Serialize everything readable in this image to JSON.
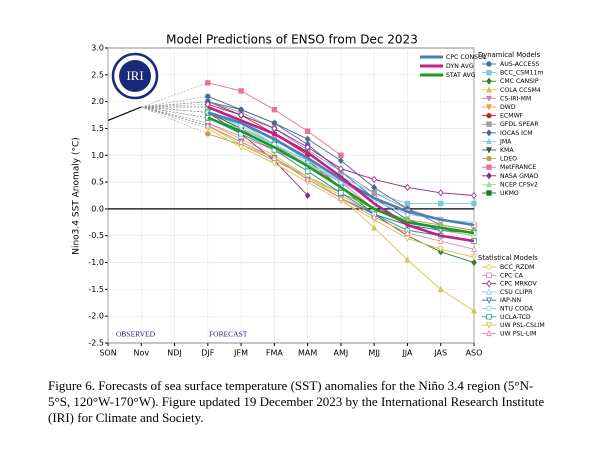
{
  "chart_data": {
    "type": "line",
    "title": "Model Predictions of ENSO from Dec 2023",
    "y_label": "Nino3.4 SST Anomaly (°C)",
    "logo_text": "IRI",
    "categories": [
      "SON",
      "Nov",
      "NDJ",
      "DJF",
      "JFM",
      "FMA",
      "MAM",
      "AMJ",
      "MJJ",
      "JJA",
      "JAS",
      "ASO"
    ],
    "ylim": [
      -2.5,
      3
    ],
    "yticks": [
      {
        "value": 3,
        "label": "3.0"
      },
      2.5,
      {
        "value": 2,
        "label": "2.0"
      },
      1.5,
      {
        "value": 1,
        "label": "1.0"
      },
      0.5,
      {
        "value": 0,
        "label": "0.0"
      },
      -0.5,
      {
        "value": -1,
        "label": "-1.0"
      },
      -1.5,
      {
        "value": -2,
        "label": "-2.0"
      },
      -2.5
    ],
    "grid": true,
    "observed": {
      "label": "OBSERVED",
      "color": "#000000",
      "values": [
        1.65,
        1.9,
        null,
        null,
        null,
        null,
        null,
        null,
        null,
        null,
        null,
        null
      ]
    },
    "forecast_label": "FORECAST",
    "series": [
      {
        "name": "CPC CONSOL",
        "color": "#4682b4",
        "values": [
          null,
          null,
          null,
          1.8,
          1.6,
          1.3,
          0.95,
          0.55,
          0.2,
          -0.05,
          -0.2,
          -0.3
        ]
      },
      {
        "name": "DYN AVG",
        "color": "#c0208a",
        "values": [
          null,
          null,
          null,
          1.9,
          1.65,
          1.4,
          1.05,
          0.6,
          0.1,
          -0.3,
          -0.5,
          -0.6
        ]
      },
      {
        "name": "STAT AVG",
        "color": "#1a9a2a",
        "values": [
          null,
          null,
          null,
          1.7,
          1.45,
          1.15,
          0.8,
          0.4,
          0.0,
          -0.25,
          -0.35,
          -0.45
        ]
      }
    ],
    "dynamical_models": {
      "title": "Dynamical Models",
      "marker_fill": true,
      "series": [
        {
          "name": "AUS-ACCESS",
          "color": "#3a6fb0",
          "marker": "circle",
          "values": [
            null,
            null,
            null,
            2.1,
            1.85,
            1.6,
            1.2,
            0.7,
            0.2,
            -0.2,
            -0.4,
            -0.5
          ]
        },
        {
          "name": "BCC_CSM11m",
          "color": "#7fc6e0",
          "marker": "square",
          "values": [
            null,
            null,
            null,
            1.7,
            1.5,
            1.2,
            0.9,
            0.6,
            0.3,
            0.1,
            0.1,
            0.1
          ]
        },
        {
          "name": "CMC CANSIP",
          "color": "#2e7d32",
          "marker": "diamond",
          "values": [
            null,
            null,
            null,
            1.9,
            1.6,
            1.3,
            0.9,
            0.4,
            -0.1,
            -0.5,
            -0.8,
            -1.0
          ]
        },
        {
          "name": "COLA CCSM4",
          "color": "#d4c64a",
          "marker": "triangle",
          "values": [
            null,
            null,
            null,
            1.6,
            1.3,
            1.0,
            0.6,
            0.2,
            -0.35,
            -0.95,
            -1.5,
            -1.9
          ]
        },
        {
          "name": "CS-IRI-MM",
          "color": "#e07aa8",
          "marker": "triangle-down",
          "values": [
            null,
            null,
            null,
            1.9,
            1.6,
            1.3,
            0.9,
            0.5,
            0.0,
            -0.3,
            -0.5,
            -0.6
          ]
        },
        {
          "name": "DWD",
          "color": "#e8a040",
          "marker": "triangle-down",
          "values": [
            null,
            null,
            null,
            1.8,
            1.5,
            1.1,
            0.7,
            0.3,
            -0.1,
            -0.4,
            -0.5,
            -0.6
          ]
        },
        {
          "name": "ECMWF",
          "color": "#c62828",
          "marker": "circle",
          "values": [
            null,
            null,
            null,
            2.0,
            1.75,
            1.4,
            1.0,
            null,
            null,
            null,
            null,
            null
          ]
        },
        {
          "name": "GFDL SPEAR",
          "color": "#9e9e9e",
          "marker": "square",
          "values": [
            null,
            null,
            null,
            2.0,
            1.8,
            1.5,
            1.1,
            0.7,
            0.3,
            0.0,
            -0.2,
            -0.3
          ]
        },
        {
          "name": "IOCAS ICM",
          "color": "#4a6a8a",
          "marker": "diamond",
          "values": [
            null,
            null,
            null,
            2.0,
            1.85,
            1.6,
            1.3,
            0.9,
            0.4,
            0.0,
            -0.3,
            -0.4
          ]
        },
        {
          "name": "JMA",
          "color": "#8ecae6",
          "marker": "triangle",
          "values": [
            null,
            null,
            null,
            1.9,
            1.65,
            1.3,
            0.9,
            0.5,
            null,
            null,
            null,
            null
          ]
        },
        {
          "name": "KMA",
          "color": "#2f5d3a",
          "marker": "triangle-down",
          "values": [
            null,
            null,
            null,
            1.8,
            1.5,
            1.2,
            0.8,
            0.4,
            null,
            null,
            null,
            null
          ]
        },
        {
          "name": "LDEO",
          "color": "#b5a642",
          "marker": "circle",
          "values": [
            null,
            null,
            null,
            1.4,
            1.2,
            0.9,
            0.6,
            0.3,
            0.0,
            -0.2,
            -0.3,
            -0.4
          ]
        },
        {
          "name": "MetFRANCE",
          "color": "#e57399",
          "marker": "square",
          "values": [
            null,
            null,
            null,
            2.35,
            2.2,
            1.85,
            1.45,
            1.0,
            null,
            null,
            null,
            null
          ]
        },
        {
          "name": "NASA GMAO",
          "color": "#8e2a8e",
          "marker": "diamond",
          "values": [
            null,
            null,
            null,
            1.8,
            1.4,
            0.9,
            0.25,
            null,
            null,
            null,
            null,
            null
          ]
        },
        {
          "name": "NCEP CFSv2",
          "color": "#a5d6a7",
          "marker": "triangle",
          "values": [
            null,
            null,
            null,
            1.9,
            1.6,
            1.2,
            0.85,
            0.4,
            null,
            null,
            null,
            null
          ]
        },
        {
          "name": "UKMO",
          "color": "#1b7a2b",
          "marker": "square",
          "values": [
            null,
            null,
            null,
            1.8,
            1.5,
            1.2,
            0.8,
            0.4,
            null,
            null,
            null,
            null
          ]
        }
      ]
    },
    "statistical_models": {
      "title": "Statistical Models",
      "marker_fill": false,
      "series": [
        {
          "name": "BCC_RZDM",
          "color": "#d4c64a",
          "marker": "circle",
          "values": [
            null,
            null,
            null,
            1.55,
            1.2,
            0.95,
            0.6,
            0.25,
            -0.1,
            -0.3,
            -0.4,
            -0.5
          ]
        },
        {
          "name": "CPC CA",
          "color": "#e07aa8",
          "marker": "square",
          "values": [
            null,
            null,
            null,
            1.6,
            1.35,
            1.1,
            0.8,
            0.5,
            0.2,
            -0.05,
            -0.2,
            -0.3
          ]
        },
        {
          "name": "CPC MRKOV",
          "color": "#8e2a8e",
          "marker": "diamond",
          "values": [
            null,
            null,
            null,
            1.95,
            1.75,
            1.5,
            1.15,
            0.75,
            0.55,
            0.4,
            0.3,
            0.25
          ]
        },
        {
          "name": "CSU CLIPR",
          "color": "#9ecae1",
          "marker": "triangle",
          "values": [
            null,
            null,
            null,
            1.7,
            1.5,
            1.2,
            0.85,
            0.5,
            0.15,
            -0.1,
            -0.2,
            -0.25
          ]
        },
        {
          "name": "IAP-NN",
          "color": "#3a6fb0",
          "marker": "triangle-down",
          "values": [
            null,
            null,
            null,
            1.55,
            1.25,
            0.95,
            0.55,
            0.2,
            -0.1,
            -0.3,
            -0.4,
            -0.45
          ]
        },
        {
          "name": "NTU CODA",
          "color": "#6fd0e0",
          "marker": "circle",
          "values": [
            null,
            null,
            null,
            1.8,
            1.55,
            1.2,
            0.8,
            0.4,
            0.0,
            -0.25,
            -0.35,
            -0.45
          ]
        },
        {
          "name": "UCLA-TCD",
          "color": "#2a9d8f",
          "marker": "square",
          "values": [
            null,
            null,
            null,
            1.7,
            1.4,
            1.1,
            0.7,
            0.3,
            -0.1,
            -0.4,
            -0.5,
            -0.6
          ]
        },
        {
          "name": "UW PSL-CSLIM",
          "color": "#d8c040",
          "marker": "triangle-down",
          "values": [
            null,
            null,
            null,
            1.5,
            1.15,
            0.85,
            0.5,
            0.15,
            -0.2,
            -0.55,
            -0.75,
            -0.9
          ]
        },
        {
          "name": "UW PSL-LIM",
          "color": "#e88aa0",
          "marker": "triangle",
          "values": [
            null,
            null,
            null,
            1.55,
            1.25,
            0.95,
            0.55,
            0.2,
            -0.15,
            -0.45,
            -0.6,
            -0.75
          ]
        }
      ]
    }
  },
  "caption": "Figure 6. Forecasts of sea surface temperature (SST) anomalies for the Niño 3.4 region (5°N-5°S, 120°W-170°W). Figure updated 19 December 2023 by the International Research Institute (IRI) for Climate and Society."
}
